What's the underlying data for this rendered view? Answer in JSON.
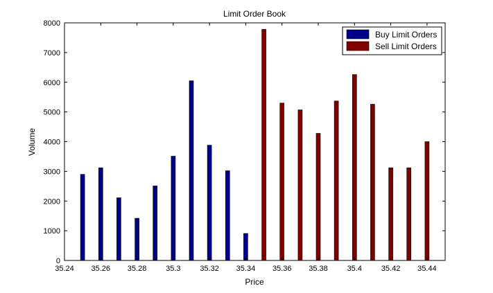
{
  "chart_data": {
    "type": "bar",
    "title": "Limit Order Book",
    "xlabel": "Price",
    "ylabel": "Volume",
    "xlim": [
      35.24,
      35.45
    ],
    "ylim": [
      0,
      8000
    ],
    "x_ticks": [
      35.24,
      35.26,
      35.28,
      35.3,
      35.32,
      35.34,
      35.36,
      35.38,
      35.4,
      35.42,
      35.44
    ],
    "x_tick_labels": [
      "35.24",
      "35.26",
      "35.28",
      "35.3",
      "35.32",
      "35.34",
      "35.36",
      "35.38",
      "35.4",
      "35.42",
      "35.44"
    ],
    "y_ticks": [
      0,
      1000,
      2000,
      3000,
      4000,
      5000,
      6000,
      7000,
      8000
    ],
    "y_tick_labels": [
      "0",
      "1000",
      "2000",
      "3000",
      "4000",
      "5000",
      "6000",
      "7000",
      "8000"
    ],
    "legend_position": "top-right",
    "grid": false,
    "series": [
      {
        "name": "Buy Limit Orders",
        "color": "#00008b",
        "x": [
          35.25,
          35.26,
          35.27,
          35.28,
          35.29,
          35.3,
          35.31,
          35.32,
          35.33,
          35.34
        ],
        "values": [
          2900,
          3120,
          2110,
          1420,
          2510,
          3510,
          6050,
          3880,
          3020,
          910
        ]
      },
      {
        "name": "Sell Limit Orders",
        "color": "#800000",
        "x": [
          35.35,
          35.36,
          35.37,
          35.38,
          35.39,
          35.4,
          35.41,
          35.42,
          35.43,
          35.44
        ],
        "values": [
          7780,
          5300,
          5070,
          4280,
          5370,
          6260,
          5260,
          3120,
          3120,
          4000
        ]
      }
    ]
  }
}
